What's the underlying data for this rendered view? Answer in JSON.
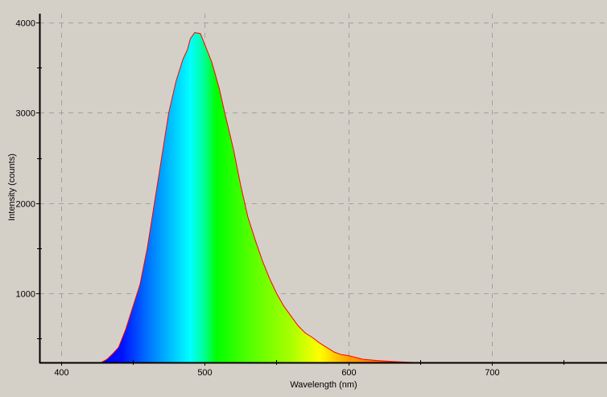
{
  "chart_data": {
    "type": "area",
    "title": "",
    "xlabel": "Wavelength (nm)",
    "ylabel": "Intensity (counts)",
    "xlim": [
      385,
      780
    ],
    "ylim": [
      234,
      4100
    ],
    "x_ticks": [
      400,
      500,
      600,
      700
    ],
    "y_ticks": [
      1000,
      2000,
      3000,
      4000
    ],
    "grid": true,
    "legend": "none",
    "line_color": "#ff0000",
    "fill": "visible-spectrum gradient by wavelength",
    "spectrum_stops": [
      {
        "nm": 430,
        "color": "#0000ff"
      },
      {
        "nm": 442,
        "color": "#0010ff"
      },
      {
        "nm": 460,
        "color": "#0070ff"
      },
      {
        "nm": 478,
        "color": "#00c8ff"
      },
      {
        "nm": 490,
        "color": "#00ffff"
      },
      {
        "nm": 500,
        "color": "#00ff90"
      },
      {
        "nm": 508,
        "color": "#00ff00"
      },
      {
        "nm": 530,
        "color": "#50ff00"
      },
      {
        "nm": 560,
        "color": "#a8ff00"
      },
      {
        "nm": 580,
        "color": "#ffff00"
      },
      {
        "nm": 600,
        "color": "#ffa000"
      },
      {
        "nm": 645,
        "color": "#ff4000"
      }
    ],
    "series": [
      {
        "x": [
          428,
          432,
          436,
          440,
          445,
          450,
          453,
          455,
          460,
          465,
          470,
          475,
          480,
          485,
          488,
          490,
          493,
          497,
          500,
          505,
          510,
          514,
          520,
          525,
          530,
          535,
          540,
          545,
          550,
          555,
          560,
          565,
          570,
          575,
          580,
          585,
          590,
          595,
          600,
          610,
          620,
          630,
          640,
          645
        ],
        "y": [
          234,
          270,
          330,
          400,
          600,
          850,
          1000,
          1100,
          1500,
          2000,
          2500,
          3000,
          3350,
          3600,
          3700,
          3820,
          3890,
          3880,
          3760,
          3560,
          3280,
          3000,
          2600,
          2200,
          1850,
          1600,
          1370,
          1170,
          1000,
          860,
          750,
          640,
          560,
          510,
          450,
          400,
          350,
          320,
          310,
          270,
          255,
          245,
          238,
          234
        ]
      }
    ]
  }
}
